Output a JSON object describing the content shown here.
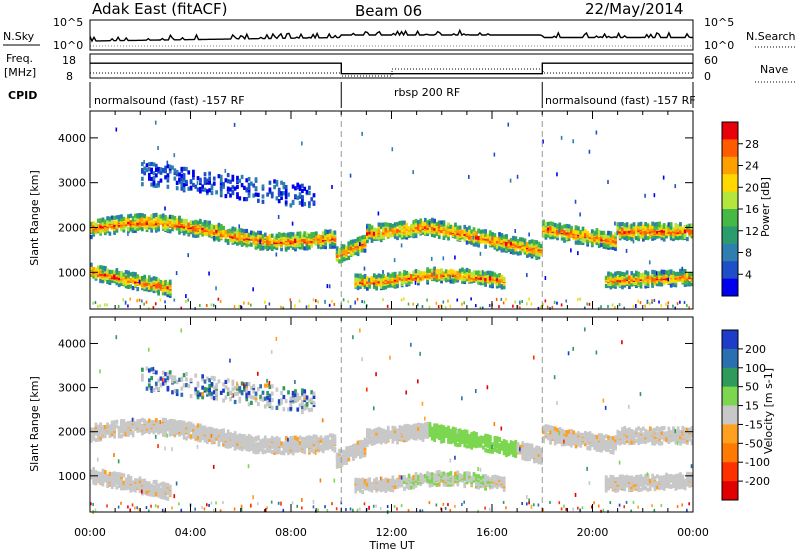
{
  "header": {
    "station": "Adak East (fitACF)",
    "beam": "Beam 06",
    "date": "22/May/2014"
  },
  "status_panels": {
    "nsky_label": "N.Sky",
    "nsky_ticks": [
      "10^5",
      "10^0"
    ],
    "nsearch_label": "N.Search",
    "nsearch_ticks": [
      "10^5",
      "10^0"
    ],
    "freq_label_line1": "Freq.",
    "freq_label_line2": "[MHz]",
    "freq_ticks": [
      "18",
      "8"
    ],
    "nave_label": "Nave",
    "nave_ticks": [
      "60",
      "0"
    ],
    "cpid_label": "CPID",
    "cpid_segments": [
      {
        "name": "normalsound (fast) -157 RF",
        "start_hr": 0,
        "end_hr": 10
      },
      {
        "name": "rbsp 200 RF",
        "start_hr": 10,
        "end_hr": 18
      },
      {
        "name": "normalsound (fast) -157 RF",
        "start_hr": 18,
        "end_hr": 24
      }
    ],
    "freq_mhz_steps": [
      {
        "start_hr": 0,
        "end_hr": 10,
        "mhz": 15.5
      },
      {
        "start_hr": 10,
        "end_hr": 18,
        "mhz": 10.2
      },
      {
        "start_hr": 18,
        "end_hr": 24,
        "mhz": 15.5
      }
    ]
  },
  "chart_data": [
    {
      "type": "heatmap",
      "name": "power",
      "ylabel": "Slant Range [km]",
      "xlabel": "Time UT",
      "xlim_hr": [
        0,
        24
      ],
      "ylim": [
        180,
        4600
      ],
      "ytick_values": [
        1000,
        2000,
        3000,
        4000
      ],
      "colorbar_label": "Power [dB]",
      "colorbar_ticks": [
        "28",
        "24",
        "20",
        "16",
        "12",
        "8",
        "4"
      ],
      "colorbar_colors": [
        "#e8000b",
        "#ff5a00",
        "#ff9f00",
        "#ffd800",
        "#b4e63c",
        "#45b845",
        "#2b9c6e",
        "#2e7eb0",
        "#1e4fc8",
        "#0000ee"
      ]
    },
    {
      "type": "heatmap",
      "name": "velocity",
      "ylabel": "Slant Range [km]",
      "xlabel": "Time UT",
      "xlim_hr": [
        0,
        24
      ],
      "ylim": [
        180,
        4600
      ],
      "ytick_values": [
        1000,
        2000,
        3000,
        4000
      ],
      "colorbar_label": "Velocity [m s-1]",
      "colorbar_ticks": [
        "200",
        "100",
        "50",
        "15",
        "-15",
        "-50",
        "-100",
        "-200"
      ],
      "colorbar_colors": [
        "#1e3cc8",
        "#2a6fb0",
        "#2e9b5a",
        "#7cd650",
        "#c8c8c8",
        "#ffa020",
        "#ff7a00",
        "#ff3000",
        "#e00000"
      ]
    }
  ],
  "x_axis": {
    "ticks": [
      "00:00",
      "04:00",
      "08:00",
      "12:00",
      "16:00",
      "20:00",
      "00:00"
    ],
    "label": "Time UT"
  }
}
